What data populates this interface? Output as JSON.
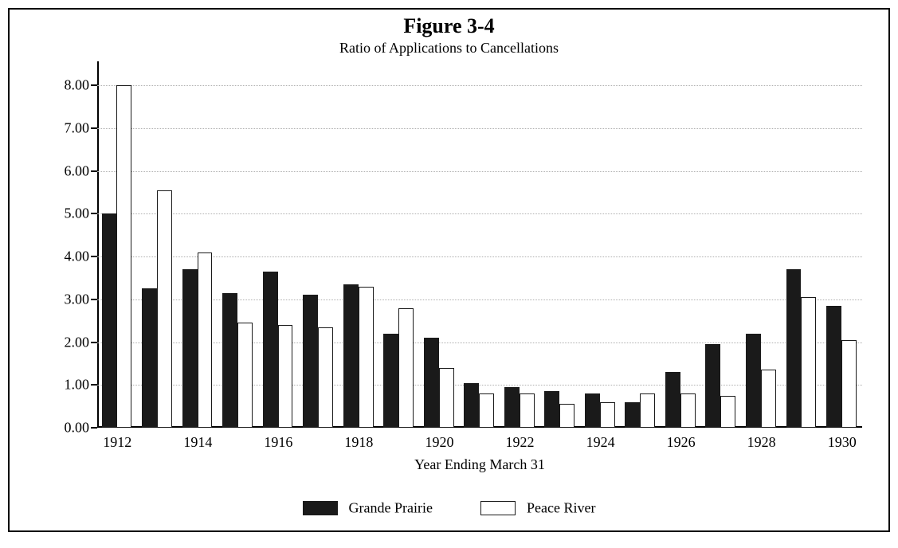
{
  "title": "Figure 3-4",
  "subtitle": "Ratio of Applications to Cancellations",
  "x_axis_title": "Year Ending March 31",
  "chart": {
    "type": "bar",
    "background_color": "#ffffff",
    "grid_color": "#b0b0b0",
    "axis_color": "#000000",
    "title_fontsize": 26,
    "subtitle_fontsize": 18,
    "label_fontsize": 18,
    "ylim": [
      0.0,
      8.0
    ],
    "ytick_step": 1.0,
    "y_decimals": 2,
    "bar_group_width": 0.78,
    "bar_inner_ratio": 0.48,
    "years": [
      1912,
      1913,
      1914,
      1915,
      1916,
      1917,
      1918,
      1919,
      1920,
      1921,
      1922,
      1923,
      1924,
      1925,
      1926,
      1927,
      1928,
      1929,
      1930
    ],
    "x_label_step": 2,
    "series": [
      {
        "name": "Grande Prairie",
        "style": "filled",
        "color": "#1a1a1a",
        "values": [
          5.0,
          3.25,
          3.7,
          3.15,
          3.65,
          3.1,
          3.35,
          2.2,
          2.1,
          1.05,
          0.95,
          0.85,
          0.8,
          0.6,
          1.3,
          1.95,
          2.2,
          3.7,
          2.85
        ]
      },
      {
        "name": "Peace River",
        "style": "hollow",
        "color": "#ffffff",
        "border_color": "#1a1a1a",
        "values": [
          8.0,
          5.55,
          4.1,
          2.45,
          2.4,
          2.35,
          3.3,
          2.8,
          1.4,
          0.8,
          0.8,
          0.55,
          0.6,
          0.8,
          0.8,
          0.75,
          1.35,
          3.05,
          2.05
        ]
      }
    ]
  }
}
